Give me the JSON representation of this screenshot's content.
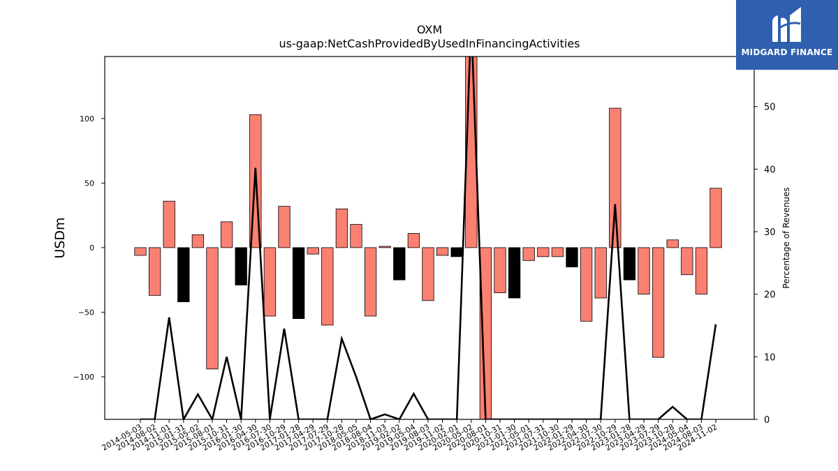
{
  "chart_data": {
    "type": "bar",
    "title": "OXM",
    "subtitle": "us-gaap:NetCashProvidedByUsedInFinancingActivities",
    "ylabel": "USDm",
    "y2label": "Percentage of Revenues",
    "ylim": [
      -133,
      148
    ],
    "y2lim": [
      0,
      58
    ],
    "yticks": [
      -100,
      -50,
      0,
      50,
      100
    ],
    "y2ticks": [
      0,
      10,
      20,
      30,
      40,
      50
    ],
    "legend": "none",
    "grid": false,
    "colors": {
      "positive_bar": "#fa8072",
      "negative_bar": "#000000",
      "line": "#000000"
    },
    "x_tick_labels": [
      "2014-05-03",
      "2014-08-02",
      "2014-11-01",
      "2015-01-31",
      "2015-05-02",
      "2015-08-01",
      "2015-10-31",
      "2016-01-30",
      "2016-04-30",
      "2016-07-30",
      "2016-10-29",
      "2017-01-28",
      "2017-04-29",
      "2017-07-29",
      "2017-10-28",
      "2018-05-05",
      "2018-08-04",
      "2018-11-03",
      "2019-02-02",
      "2019-05-04",
      "2019-08-03",
      "2019-11-02",
      "2020-02-01",
      "2020-05-02",
      "2020-08-01",
      "2020-10-31",
      "2021-01-30",
      "2021-05-01",
      "2021-07-31",
      "2021-10-30",
      "2022-01-29",
      "2022-04-30",
      "2022-07-30",
      "2022-10-29",
      "2023-01-28",
      "2023-04-29",
      "2023-07-29",
      "2023-10-28",
      "2024-05-04",
      "2024-08-03",
      "2024-11-02"
    ],
    "series": [
      {
        "kind": "bar",
        "axis": "left",
        "values": [
          -6,
          -37,
          36,
          -42,
          10,
          -94,
          20,
          -29,
          103,
          -53,
          32,
          -55,
          -5,
          -60,
          30,
          18,
          -53,
          1,
          -25,
          11,
          -41,
          -6,
          -7,
          170,
          -142,
          -35,
          -39,
          -10,
          -7,
          -7,
          -15,
          -57,
          -39,
          108,
          -25,
          -36,
          -85,
          6,
          -21,
          -36,
          46
        ],
        "highlight": [
          false,
          false,
          false,
          true,
          false,
          false,
          false,
          true,
          false,
          false,
          false,
          true,
          false,
          false,
          false,
          false,
          false,
          false,
          true,
          false,
          false,
          false,
          true,
          false,
          false,
          false,
          true,
          false,
          false,
          false,
          true,
          false,
          false,
          false,
          true,
          false,
          false,
          false,
          false,
          false,
          false
        ]
      },
      {
        "kind": "line",
        "axis": "right",
        "values": [
          0,
          0,
          16.3,
          0,
          4,
          0,
          10,
          0,
          40.2,
          0,
          14.5,
          0,
          0,
          0,
          12.9,
          6.8,
          0,
          0.8,
          0,
          4.1,
          0,
          0,
          0,
          64,
          0,
          0,
          0,
          0,
          0,
          0,
          0,
          0,
          0,
          34.4,
          0,
          0,
          0,
          2,
          0,
          0,
          15.2
        ]
      }
    ]
  },
  "logo": {
    "text": "MIDGARD FINANCE"
  }
}
